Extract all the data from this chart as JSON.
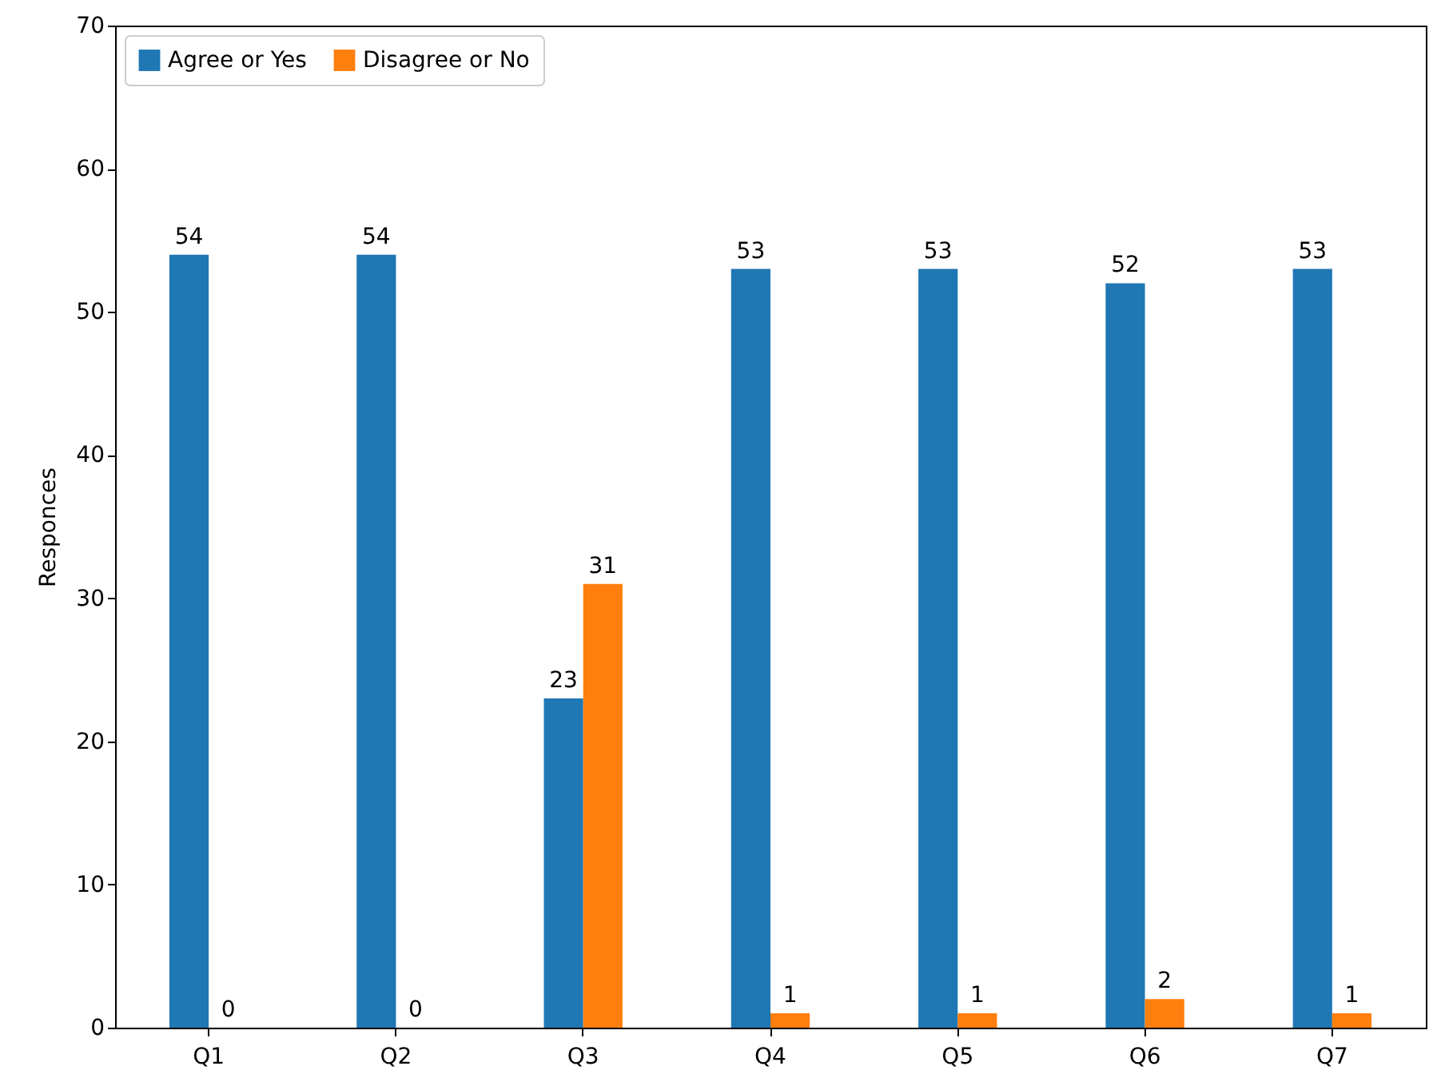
{
  "chart_data": {
    "type": "bar",
    "ylabel": "Responces",
    "categories": [
      "Q1",
      "Q2",
      "Q3",
      "Q4",
      "Q5",
      "Q6",
      "Q7"
    ],
    "series": [
      {
        "name": "Agree or Yes",
        "color": "#1f77b4",
        "values": [
          54,
          54,
          23,
          53,
          53,
          52,
          53
        ]
      },
      {
        "name": "Disagree or No",
        "color": "#ff7f0e",
        "values": [
          0,
          0,
          31,
          1,
          1,
          2,
          1
        ]
      }
    ],
    "ylim": [
      0,
      70
    ],
    "yticks": [
      0,
      10,
      20,
      30,
      40,
      50,
      60,
      70
    ],
    "data_labels": true,
    "legend": "top left",
    "grid": false
  }
}
